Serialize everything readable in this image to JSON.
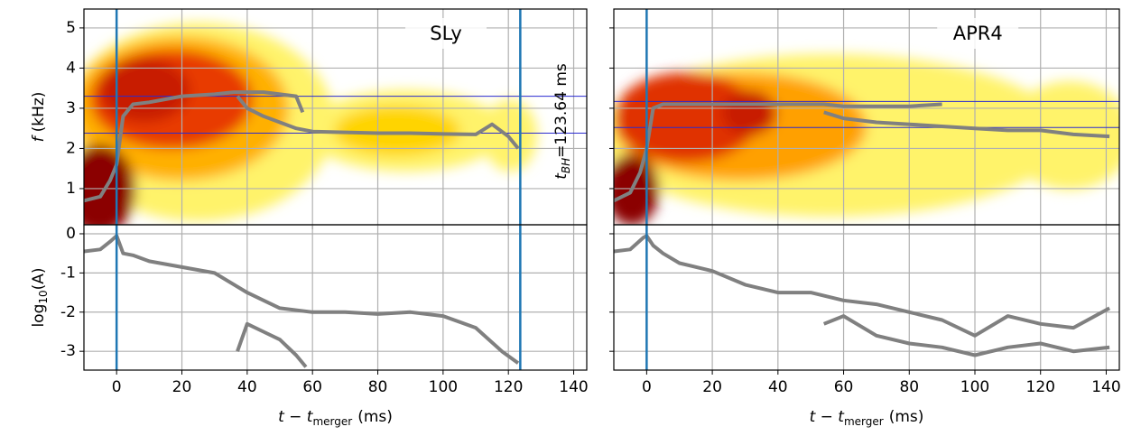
{
  "chart_data": [
    {
      "type": "line",
      "title": "SLy",
      "ylabel_parts": [
        "f",
        "(kHz)"
      ],
      "xlim": [
        -10,
        144
      ],
      "ylim": [
        0.1,
        5.47
      ],
      "xticks": [
        0,
        20,
        40,
        60,
        80,
        100,
        120,
        140
      ],
      "yticks": [
        1,
        2,
        3,
        4,
        5
      ],
      "show_xtick_labels": false,
      "show_ytick_labels": true,
      "grid": true,
      "hlines": [
        3.3,
        2.38
      ],
      "hline_color": "#2a2ad0",
      "vlines": [
        0,
        123.64
      ],
      "vline_color": "#1f77b4",
      "annotation_parts": [
        "t",
        "BH",
        "=123.64 ms"
      ],
      "series": [
        {
          "color": "#808080",
          "x": [
            -10,
            -5,
            -2,
            0,
            2,
            5,
            10,
            20,
            30,
            36,
            40,
            45,
            50,
            55,
            57
          ],
          "values": [
            0.7,
            0.8,
            1.2,
            1.6,
            2.8,
            3.1,
            3.15,
            3.3,
            3.35,
            3.4,
            3.4,
            3.4,
            3.35,
            3.3,
            2.9
          ]
        },
        {
          "color": "#808080",
          "x": [
            37,
            40,
            45,
            50,
            55,
            60,
            70,
            80,
            90,
            100,
            110,
            115,
            120,
            123
          ],
          "values": [
            3.3,
            3.0,
            2.8,
            2.65,
            2.5,
            2.42,
            2.4,
            2.38,
            2.38,
            2.36,
            2.35,
            2.6,
            2.3,
            2.0
          ]
        }
      ]
    },
    {
      "type": "line",
      "ylabel_parts": [
        "log",
        "10",
        "(A)"
      ],
      "xlim": [
        -10,
        144
      ],
      "ylim": [
        -3.48,
        0.23
      ],
      "xticks": [
        0,
        20,
        40,
        60,
        80,
        100,
        120,
        140
      ],
      "yticks": [
        0,
        -1,
        -2,
        -3
      ],
      "show_xtick_labels": true,
      "show_ytick_labels": true,
      "grid": true,
      "xlabel_parts": [
        "t − t",
        "merger",
        "(ms)"
      ],
      "vlines": [
        0,
        123.64
      ],
      "vline_color": "#1f77b4",
      "series": [
        {
          "color": "#808080",
          "x": [
            -10,
            -5,
            -2,
            0,
            2,
            5,
            10,
            20,
            30,
            40,
            50,
            60,
            70,
            80,
            90,
            100,
            110,
            118,
            123
          ],
          "values": [
            -0.45,
            -0.4,
            -0.2,
            -0.05,
            -0.5,
            -0.55,
            -0.7,
            -0.85,
            -1.0,
            -1.5,
            -1.9,
            -2.0,
            -2.0,
            -2.05,
            -2.0,
            -2.1,
            -2.4,
            -3.0,
            -3.3
          ]
        },
        {
          "color": "#808080",
          "x": [
            37,
            40,
            45,
            50,
            55,
            58
          ],
          "values": [
            -3.0,
            -2.3,
            -2.5,
            -2.7,
            -3.1,
            -3.4
          ]
        }
      ]
    },
    {
      "type": "line",
      "title": "APR4",
      "xlim": [
        -10,
        144
      ],
      "ylim": [
        0.1,
        5.47
      ],
      "xticks": [
        0,
        20,
        40,
        60,
        80,
        100,
        120,
        140
      ],
      "yticks": [
        1,
        2,
        3,
        4,
        5
      ],
      "show_xtick_labels": false,
      "show_ytick_labels": false,
      "grid": true,
      "hlines": [
        3.17,
        2.52
      ],
      "hline_color": "#2a2ad0",
      "vlines": [
        0
      ],
      "vline_color": "#1f77b4",
      "series": [
        {
          "color": "#808080",
          "x": [
            -10,
            -5,
            -2,
            0,
            2,
            5,
            10,
            20,
            30,
            40,
            54,
            60,
            70,
            80,
            90
          ],
          "values": [
            0.7,
            0.9,
            1.4,
            2.0,
            3.0,
            3.1,
            3.1,
            3.1,
            3.1,
            3.1,
            3.1,
            3.05,
            3.05,
            3.05,
            3.1
          ]
        },
        {
          "color": "#808080",
          "x": [
            54,
            60,
            70,
            80,
            90,
            100,
            110,
            120,
            130,
            141
          ],
          "values": [
            2.9,
            2.75,
            2.65,
            2.6,
            2.55,
            2.5,
            2.45,
            2.45,
            2.35,
            2.3
          ]
        }
      ]
    },
    {
      "type": "line",
      "xlim": [
        -10,
        144
      ],
      "ylim": [
        -3.48,
        0.23
      ],
      "xticks": [
        0,
        20,
        40,
        60,
        80,
        100,
        120,
        140
      ],
      "yticks": [
        0,
        -1,
        -2,
        -3
      ],
      "show_xtick_labels": true,
      "show_ytick_labels": false,
      "grid": true,
      "xlabel_parts": [
        "t − t",
        "merger",
        "(ms)"
      ],
      "vlines": [
        0
      ],
      "vline_color": "#1f77b4",
      "series": [
        {
          "color": "#808080",
          "x": [
            -10,
            -5,
            -1,
            0,
            2,
            5,
            10,
            20,
            30,
            40,
            50,
            60,
            70,
            80,
            90,
            100,
            110,
            120,
            130,
            141
          ],
          "values": [
            -0.45,
            -0.4,
            -0.1,
            -0.05,
            -0.3,
            -0.5,
            -0.75,
            -0.95,
            -1.3,
            -1.5,
            -1.5,
            -1.7,
            -1.8,
            -2.0,
            -2.2,
            -2.6,
            -2.1,
            -2.3,
            -2.4,
            -1.9
          ]
        },
        {
          "color": "#808080",
          "x": [
            54,
            60,
            70,
            80,
            90,
            100,
            110,
            120,
            130,
            141
          ],
          "values": [
            -2.3,
            -2.1,
            -2.6,
            -2.8,
            -2.9,
            -3.1,
            -2.9,
            -2.8,
            -3.0,
            -2.9
          ]
        }
      ]
    }
  ]
}
